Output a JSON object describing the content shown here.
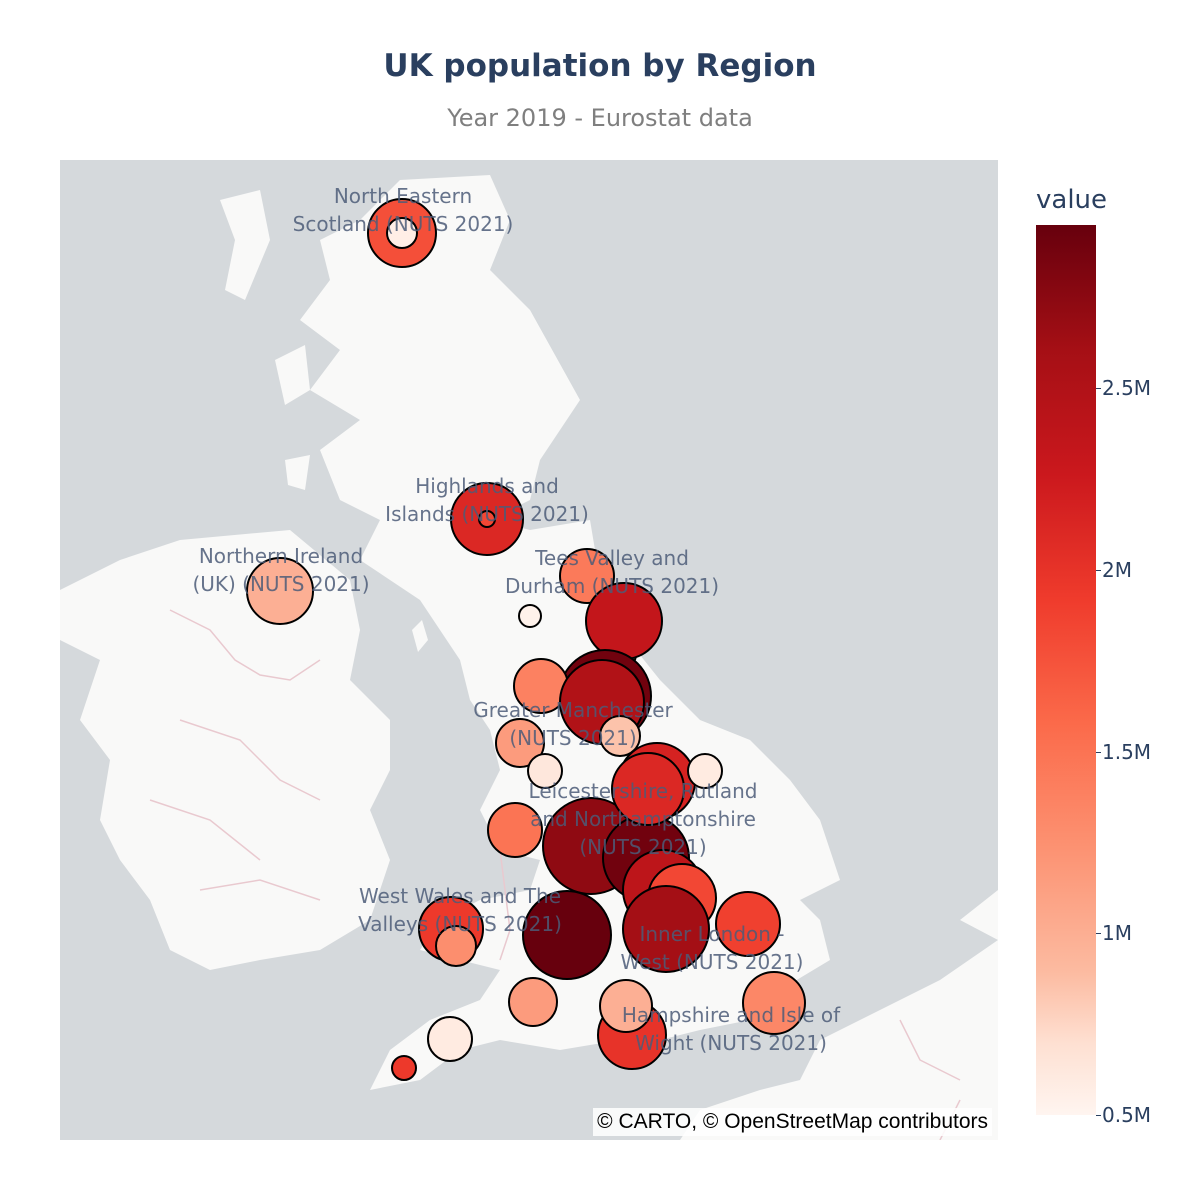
{
  "title": "UK population by Region",
  "subtitle": "Year 2019 - Eurostat data",
  "attribution": "© CARTO, © OpenStreetMap contributors",
  "colorbar": {
    "title": "value",
    "ticks": [
      "2.5M",
      "2M",
      "1.5M",
      "1M",
      "0.5M"
    ],
    "tick_values": [
      2500000,
      2000000,
      1500000,
      1000000,
      500000
    ],
    "range": [
      500000,
      2950000
    ],
    "colorscale": "Reds",
    "colors": [
      "#fff5f0",
      "#fee0d2",
      "#fcbba1",
      "#fc9272",
      "#fb6a4a",
      "#ef3b2c",
      "#cb181d",
      "#a50f15",
      "#67000d"
    ]
  },
  "map": {
    "land_color": "#f9f9f8",
    "water_color": "#d5d9dc",
    "border_color": "#e9c9cf"
  },
  "labels": [
    [
      "North Eastern",
      "Scotland (NUTS 2021)"
    ],
    [
      "Highlands and",
      "Islands (NUTS 2021)"
    ],
    [
      "Northern Ireland",
      "(UK) (NUTS 2021)"
    ],
    [
      "Tees Valley and",
      "Durham (NUTS 2021)"
    ],
    [
      "Greater Manchester",
      "(NUTS 2021)"
    ],
    [
      "Leicestershire, Rutland",
      "and Northamptonshire",
      "(NUTS 2021)"
    ],
    [
      "West Wales and The",
      "Valleys (NUTS 2021)"
    ],
    [
      "Inner London -",
      "West (NUTS 2021)"
    ],
    [
      "Hampshire and Isle of",
      "Wight (NUTS 2021)"
    ]
  ],
  "regions": [
    {
      "value": 1900000
    },
    {
      "value": 600000
    },
    {
      "value": 2200000
    },
    {
      "value": 1950000
    },
    {
      "value": 1200000
    },
    {
      "value": 550000
    },
    {
      "value": 700000
    },
    {
      "value": 1600000
    },
    {
      "value": 2400000
    },
    {
      "value": 2900000
    },
    {
      "value": 1550000
    },
    {
      "value": 1350000
    },
    {
      "value": 700000
    },
    {
      "value": 2250000
    },
    {
      "value": 650000
    },
    {
      "value": 2550000
    },
    {
      "value": 1650000
    },
    {
      "value": 2750000
    },
    {
      "value": 2900000
    },
    {
      "value": 2200000
    },
    {
      "value": 1050000
    },
    {
      "value": 2450000
    },
    {
      "value": 1950000
    },
    {
      "value": 2650000
    },
    {
      "value": 2050000
    },
    {
      "value": 2950000
    },
    {
      "value": 2000000
    },
    {
      "value": 1450000
    },
    {
      "value": 1350000
    },
    {
      "value": 650000
    },
    {
      "value": 2050000
    },
    {
      "value": 2100000
    },
    {
      "value": 1500000
    },
    {
      "value": 1200000
    }
  ]
}
